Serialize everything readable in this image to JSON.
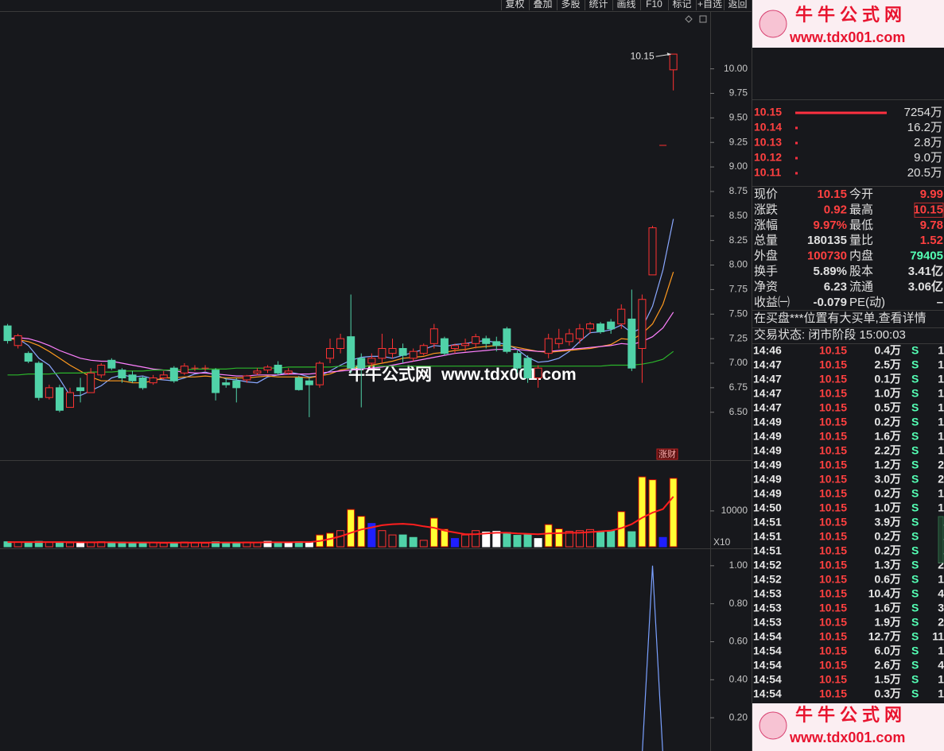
{
  "chart_data": [
    {
      "type": "candlestick",
      "open": [
        7.38,
        7.18,
        7.1,
        7.0,
        6.65,
        6.75,
        6.55,
        6.75,
        6.7,
        6.88,
        7.03,
        6.93,
        6.88,
        6.85,
        6.8,
        6.85,
        6.95,
        6.9,
        6.95,
        6.95,
        6.93,
        6.8,
        6.82,
        6.83,
        6.9,
        6.93,
        6.98,
        6.9,
        6.85,
        6.82,
        6.78,
        7.05,
        7.15,
        7.27,
        7.05,
        7.0,
        7.05,
        7.1,
        7.15,
        7.05,
        7.1,
        7.2,
        7.25,
        7.15,
        7.18,
        7.2,
        7.25,
        7.22,
        7.35,
        7.1,
        7.05,
        6.85,
        7.1,
        7.2,
        7.22,
        7.25,
        7.35,
        7.4,
        7.42,
        7.4,
        7.45,
        7.15,
        7.9,
        9.22,
        9.99
      ],
      "high": [
        7.4,
        7.3,
        7.12,
        7.02,
        6.78,
        6.78,
        6.75,
        6.85,
        6.95,
        7.0,
        7.05,
        6.95,
        6.92,
        6.87,
        6.88,
        6.92,
        6.97,
        7.0,
        6.98,
        6.98,
        6.95,
        6.85,
        6.85,
        6.88,
        6.95,
        6.98,
        7.02,
        6.95,
        6.87,
        6.85,
        7.02,
        7.25,
        7.3,
        7.7,
        7.1,
        7.1,
        7.3,
        7.25,
        7.2,
        7.15,
        7.2,
        7.4,
        7.27,
        7.2,
        7.25,
        7.3,
        7.28,
        7.27,
        7.37,
        7.13,
        7.08,
        6.98,
        7.3,
        7.35,
        7.35,
        7.4,
        7.42,
        7.42,
        7.45,
        7.6,
        7.75,
        7.7,
        8.4,
        9.22,
        10.15
      ],
      "low": [
        7.2,
        7.15,
        7.0,
        6.62,
        6.63,
        6.5,
        6.55,
        6.6,
        6.7,
        6.85,
        6.93,
        6.8,
        6.8,
        6.73,
        6.78,
        6.83,
        6.8,
        6.88,
        6.92,
        6.92,
        6.62,
        6.75,
        6.6,
        6.8,
        6.88,
        6.9,
        6.88,
        6.88,
        6.72,
        6.45,
        6.75,
        7.0,
        7.1,
        6.9,
        6.55,
        6.95,
        7.0,
        7.05,
        7.0,
        7.02,
        7.08,
        7.15,
        7.08,
        7.1,
        7.12,
        7.15,
        7.15,
        7.12,
        7.1,
        6.9,
        6.8,
        6.75,
        7.05,
        7.15,
        7.18,
        7.2,
        7.3,
        7.3,
        7.3,
        7.35,
        6.92,
        6.8,
        7.9,
        9.22,
        9.78
      ],
      "close": [
        7.23,
        7.28,
        7.02,
        6.65,
        6.75,
        6.52,
        6.7,
        6.72,
        6.9,
        6.98,
        6.95,
        6.85,
        6.82,
        6.75,
        6.85,
        6.88,
        6.82,
        6.97,
        6.95,
        6.95,
        6.7,
        6.78,
        6.75,
        6.87,
        6.92,
        6.96,
        6.9,
        6.92,
        6.73,
        6.78,
        7.0,
        7.15,
        7.25,
        6.95,
        6.95,
        7.05,
        7.15,
        7.15,
        7.08,
        7.12,
        7.18,
        7.35,
        7.1,
        7.18,
        7.2,
        7.27,
        7.2,
        7.18,
        7.12,
        6.95,
        6.85,
        6.95,
        7.25,
        7.25,
        7.3,
        7.35,
        7.4,
        7.32,
        7.35,
        7.55,
        6.95,
        7.65,
        8.38,
        9.22,
        10.15
      ],
      "up_color": "#ff3232",
      "down_color": "#50d2a8",
      "lines": [
        {
          "color": "#8aa8ff",
          "values": [
            7.25,
            7.25,
            7.18,
            7.05,
            6.98,
            6.84,
            6.67,
            6.67,
            6.72,
            6.77,
            6.85,
            6.88,
            6.86,
            6.87,
            6.84,
            6.83,
            6.82,
            6.85,
            6.89,
            6.91,
            6.88,
            6.84,
            6.83,
            6.81,
            6.8,
            6.86,
            6.88,
            6.91,
            6.89,
            6.86,
            6.87,
            6.92,
            6.98,
            7.03,
            7.06,
            7.07,
            7.07,
            7.05,
            7.08,
            7.11,
            7.14,
            7.18,
            7.17,
            7.19,
            7.2,
            7.22,
            7.23,
            7.21,
            7.19,
            7.14,
            7.06,
            7.01,
            7.02,
            7.05,
            7.12,
            7.22,
            7.31,
            7.32,
            7.34,
            7.39,
            7.31,
            7.36,
            7.58,
            7.95,
            8.47
          ]
        },
        {
          "color": "#ff9a1f",
          "values": [
            7.25,
            7.24,
            7.22,
            7.18,
            7.12,
            7.05,
            6.98,
            6.92,
            6.86,
            6.82,
            6.82,
            6.82,
            6.8,
            6.8,
            6.82,
            6.85,
            6.85,
            6.86,
            6.86,
            6.87,
            6.86,
            6.85,
            6.85,
            6.85,
            6.86,
            6.87,
            6.86,
            6.86,
            6.86,
            6.85,
            6.87,
            6.89,
            6.93,
            6.95,
            6.96,
            6.98,
            7.0,
            7.02,
            7.05,
            7.06,
            7.07,
            7.1,
            7.11,
            7.13,
            7.14,
            7.16,
            7.17,
            7.18,
            7.18,
            7.16,
            7.14,
            7.12,
            7.11,
            7.12,
            7.13,
            7.14,
            7.15,
            7.17,
            7.19,
            7.25,
            7.24,
            7.3,
            7.4,
            7.6,
            7.93
          ]
        },
        {
          "color": "#ff80ff",
          "values": [
            7.25,
            7.26,
            7.25,
            7.22,
            7.18,
            7.13,
            7.09,
            7.05,
            7.03,
            7.02,
            7.02,
            7.0,
            6.98,
            6.96,
            6.94,
            6.93,
            6.92,
            6.91,
            6.9,
            6.9,
            6.89,
            6.88,
            6.87,
            6.87,
            6.88,
            6.88,
            6.88,
            6.89,
            6.89,
            6.89,
            6.9,
            6.91,
            6.92,
            6.93,
            6.94,
            6.95,
            6.96,
            6.98,
            7.0,
            7.02,
            7.04,
            7.06,
            7.08,
            7.1,
            7.11,
            7.12,
            7.13,
            7.14,
            7.14,
            7.14,
            7.13,
            7.12,
            7.12,
            7.13,
            7.14,
            7.15,
            7.16,
            7.17,
            7.18,
            7.2,
            7.19,
            7.22,
            7.27,
            7.36,
            7.52
          ]
        },
        {
          "color": "#2bb52b",
          "values": [
            6.88,
            6.88,
            6.89,
            6.89,
            6.89,
            6.9,
            6.9,
            6.9,
            6.91,
            6.91,
            6.91,
            6.92,
            6.92,
            6.92,
            6.93,
            6.93,
            6.93,
            6.93,
            6.94,
            6.94,
            6.94,
            6.94,
            6.95,
            6.95,
            6.95,
            6.95,
            6.95,
            6.96,
            6.96,
            6.96,
            6.96,
            6.96,
            6.97,
            6.97,
            6.97,
            6.97,
            6.97,
            6.97,
            6.97,
            6.97,
            6.97,
            6.97,
            6.97,
            6.97,
            6.97,
            6.97,
            6.97,
            6.97,
            6.97,
            6.97,
            6.97,
            6.97,
            6.97,
            6.97,
            6.97,
            6.97,
            6.97,
            6.97,
            6.98,
            6.98,
            6.98,
            6.99,
            7.01,
            7.04,
            7.12
          ]
        }
      ],
      "annotation": "10.15",
      "tag": "涨财",
      "ylim": [
        6.02,
        10.58
      ],
      "yticks": [
        {
          "value": 10,
          "label": "10.00"
        },
        {
          "value": 9.75,
          "label": "9.75"
        },
        {
          "value": 9.5,
          "label": "9.50"
        },
        {
          "value": 9.25,
          "label": "9.25"
        },
        {
          "value": 9,
          "label": "9.00"
        },
        {
          "value": 8.75,
          "label": "8.75"
        },
        {
          "value": 8.5,
          "label": "8.50"
        },
        {
          "value": 8.25,
          "label": "8.25"
        },
        {
          "value": 8,
          "label": "8.00"
        },
        {
          "value": 7.75,
          "label": "7.75"
        },
        {
          "value": 7.5,
          "label": "7.50"
        },
        {
          "value": 7.25,
          "label": "7.25"
        },
        {
          "value": 7,
          "label": "7.00"
        },
        {
          "value": 6.75,
          "label": "6.75"
        },
        {
          "value": 6.5,
          "label": "6.50"
        }
      ]
    },
    {
      "type": "bar",
      "values": [
        1400,
        1300,
        1200,
        1500,
        1200,
        1300,
        1100,
        1000,
        1200,
        1400,
        1100,
        1300,
        1000,
        1200,
        1100,
        1000,
        1200,
        1300,
        1100,
        1000,
        1400,
        1200,
        1100,
        1300,
        1200,
        1500,
        1300,
        1200,
        1400,
        1300,
        3300,
        3800,
        4500,
        10400,
        8500,
        6500,
        4500,
        3300,
        3300,
        2600,
        1800,
        8000,
        4900,
        2300,
        3300,
        4500,
        4100,
        4300,
        4000,
        3200,
        3600,
        2300,
        6200,
        5000,
        4300,
        4500,
        4800,
        4100,
        4500,
        9800,
        4200,
        19500,
        18700,
        2600,
        19100
      ],
      "colors": [
        "#50d2a8",
        "#ff3232",
        "#50d2a8",
        "#50d2a8",
        "#ff3232",
        "#50d2a8",
        "#ff3232",
        "#ffffff",
        "#ff3232",
        "#ff3232",
        "#50d2a8",
        "#50d2a8",
        "#50d2a8",
        "#50d2a8",
        "#ff3232",
        "#ff3232",
        "#50d2a8",
        "#ff3232",
        "#ff3232",
        "#ff3232",
        "#50d2a8",
        "#50d2a8",
        "#50d2a8",
        "#ff3232",
        "#ff3232",
        "#ffffff",
        "#50d2a8",
        "#ffffff",
        "#50d2a8",
        "#ffffff",
        "#ffff33",
        "#ffff33",
        "#ff3232",
        "#ffff33",
        "#ffff33",
        "#1f1fff",
        "#ff3232",
        "#ff3232",
        "#50d2a8",
        "#50d2a8",
        "#ff3232",
        "#ffff33",
        "#ffff33",
        "#1f1fff",
        "#ff3232",
        "#ff3232",
        "#ffffff",
        "#ffffff",
        "#50d2a8",
        "#50d2a8",
        "#50d2a8",
        "#ffffff",
        "#ffff33",
        "#ffff33",
        "#ff3232",
        "#ff3232",
        "#ff3232",
        "#50d2a8",
        "#50d2a8",
        "#ffff33",
        "#50d2a8",
        "#ffff33",
        "#ffff33",
        "#1f1fff",
        "#ffff33"
      ],
      "lines": [
        {
          "color": "#ff1e1e",
          "values": [
            1300,
            1300,
            1300,
            1300,
            1300,
            1300,
            1300,
            1250,
            1250,
            1250,
            1250,
            1200,
            1200,
            1200,
            1200,
            1150,
            1150,
            1150,
            1150,
            1150,
            1200,
            1200,
            1200,
            1200,
            1200,
            1250,
            1250,
            1250,
            1300,
            1300,
            1600,
            2200,
            2900,
            3900,
            4800,
            5400,
            6000,
            6300,
            6400,
            6200,
            5700,
            5300,
            4500,
            4000,
            3500,
            3500,
            3700,
            3900,
            3900,
            3700,
            3600,
            3500,
            3700,
            3800,
            3900,
            3900,
            4100,
            4300,
            4500,
            5200,
            6300,
            8100,
            9500,
            10500,
            14000
          ]
        }
      ],
      "unit_label": "X10",
      "ylim": [
        0,
        23500
      ],
      "yticks": [
        10000
      ]
    },
    {
      "type": "line",
      "color": "#7aa0ff",
      "values": [
        0,
        0,
        0,
        0,
        0,
        0,
        0,
        0,
        0,
        0,
        0,
        0,
        0,
        0,
        0,
        0,
        0,
        0,
        0,
        0,
        0,
        0,
        0,
        0,
        0,
        0,
        0,
        0,
        0,
        0,
        0,
        0,
        0,
        0,
        0,
        0,
        0,
        0,
        0,
        0,
        0,
        0,
        0,
        0,
        0,
        0,
        0,
        0,
        0,
        0,
        0,
        0,
        0,
        0,
        0,
        0,
        0,
        0,
        0,
        0,
        0,
        0,
        1,
        0,
        0
      ],
      "ylim": [
        0.025,
        1.083
      ],
      "yticks": [
        {
          "value": 1,
          "label": "1.00"
        },
        {
          "value": 0.8,
          "label": "0.80"
        },
        {
          "value": 0.6,
          "label": "0.60"
        },
        {
          "value": 0.4,
          "label": "0.40"
        },
        {
          "value": 0.2,
          "label": "0.20"
        }
      ]
    }
  ],
  "toolbar": [
    "复权",
    "叠加",
    "多股",
    "统计",
    "画线",
    "F10",
    "标记",
    "+自选",
    "返回"
  ],
  "logo": {
    "title": "牛牛公式网",
    "url": "www.tdx001.com"
  },
  "bids": [
    {
      "price": "10.15",
      "volume": "7254万"
    },
    {
      "price": "10.14",
      "volume": "16.2万"
    },
    {
      "price": "10.13",
      "volume": "2.8万"
    },
    {
      "price": "10.12",
      "volume": "9.0万"
    },
    {
      "price": "10.11",
      "volume": "20.5万"
    }
  ],
  "quote": [
    {
      "l1": "现价",
      "v1": "10.15",
      "c1": "#ff4040",
      "l2": "今开",
      "v2": "9.99",
      "c2": "#ff4040"
    },
    {
      "l1": "涨跌",
      "v1": "0.92",
      "c1": "#ff4040",
      "l2": "最高",
      "v2": "10.15",
      "c2": "#ff4040"
    },
    {
      "l1": "涨幅",
      "v1": "9.97%",
      "c1": "#ff4040",
      "l2": "最低",
      "v2": "9.78",
      "c2": "#ff4040"
    },
    {
      "l1": "总量",
      "v1": "180135",
      "c1": "#e0e0e0",
      "l2": "量比",
      "v2": "1.52",
      "c2": "#ff4040"
    },
    {
      "l1": "外盘",
      "v1": "100730",
      "c1": "#ff4040",
      "l2": "内盘",
      "v2": "79405",
      "c2": "#54ffb4"
    },
    {
      "l1": "换手",
      "v1": "5.89%",
      "c1": "#e0e0e0",
      "l2": "股本",
      "v2": "3.41亿",
      "c2": "#e0e0e0"
    },
    {
      "l1": "净资",
      "v1": "6.23",
      "c1": "#e0e0e0",
      "l2": "流通",
      "v2": "3.06亿",
      "c2": "#e0e0e0"
    },
    {
      "l1": "收益㈠",
      "v1": "-0.079",
      "c1": "#e0e0e0",
      "l2": "PE(动)",
      "v2": "–",
      "c2": "#e0e0e0"
    }
  ],
  "notice": "在买盘***位置有大买单,查看详情",
  "status": "交易状态: 闭市阶段 15:00:03",
  "ticks": [
    [
      "14:46",
      "10.15",
      "0.4万",
      "S",
      "1"
    ],
    [
      "14:47",
      "10.15",
      "2.5万",
      "S",
      "1"
    ],
    [
      "14:47",
      "10.15",
      "0.1万",
      "S",
      "1"
    ],
    [
      "14:47",
      "10.15",
      "1.0万",
      "S",
      "1"
    ],
    [
      "14:47",
      "10.15",
      "0.5万",
      "S",
      "1"
    ],
    [
      "14:49",
      "10.15",
      "0.2万",
      "S",
      "1"
    ],
    [
      "14:49",
      "10.15",
      "1.6万",
      "S",
      "1"
    ],
    [
      "14:49",
      "10.15",
      "2.2万",
      "S",
      "1"
    ],
    [
      "14:49",
      "10.15",
      "1.2万",
      "S",
      "2"
    ],
    [
      "14:49",
      "10.15",
      "3.0万",
      "S",
      "2"
    ],
    [
      "14:49",
      "10.15",
      "0.2万",
      "S",
      "1"
    ],
    [
      "14:50",
      "10.15",
      "1.0万",
      "S",
      "1"
    ],
    [
      "14:51",
      "10.15",
      "3.9万",
      "S",
      "1"
    ],
    [
      "14:51",
      "10.15",
      "0.2万",
      "S",
      "1"
    ],
    [
      "14:51",
      "10.15",
      "0.2万",
      "S",
      "1"
    ],
    [
      "14:52",
      "10.15",
      "1.3万",
      "S",
      "2"
    ],
    [
      "14:52",
      "10.15",
      "0.6万",
      "S",
      "1"
    ],
    [
      "14:53",
      "10.15",
      "10.4万",
      "S",
      "4"
    ],
    [
      "14:53",
      "10.15",
      "1.6万",
      "S",
      "3"
    ],
    [
      "14:53",
      "10.15",
      "1.9万",
      "S",
      "2"
    ],
    [
      "14:54",
      "10.15",
      "12.7万",
      "S",
      "11"
    ],
    [
      "14:54",
      "10.15",
      "6.0万",
      "S",
      "1"
    ],
    [
      "14:54",
      "10.15",
      "2.6万",
      "S",
      "4"
    ],
    [
      "14:54",
      "10.15",
      "1.5万",
      "S",
      "1"
    ],
    [
      "14:54",
      "10.15",
      "0.3万",
      "S",
      "1"
    ]
  ]
}
